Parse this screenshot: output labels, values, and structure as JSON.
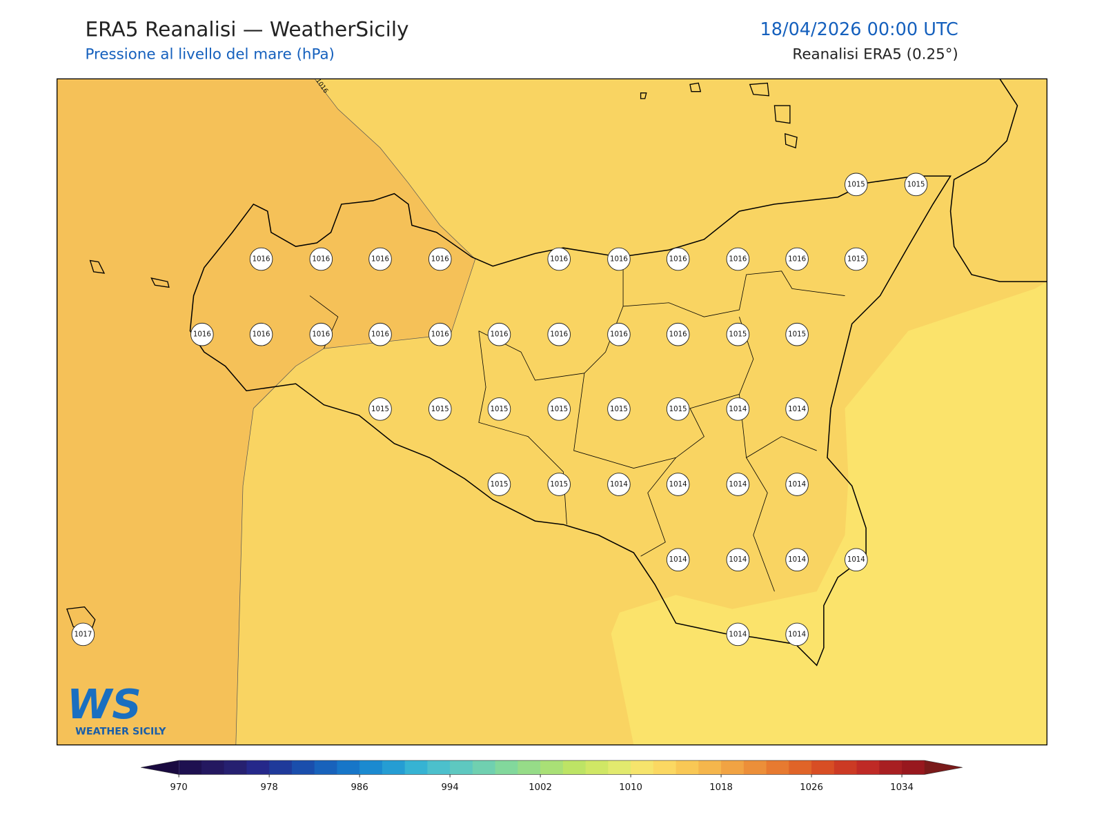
{
  "header": {
    "title": "ERA5 Reanalisi — WeatherSicily",
    "subtitle": "Pressione al livello del mare (hPa)",
    "datetime": "18/04/2026 00:00 UTC",
    "source": "Reanalisi ERA5 (0.25°)"
  },
  "map": {
    "contour_label": 1016,
    "stations": [
      1015,
      1015,
      1016,
      1016,
      1016,
      1016,
      1016,
      1016,
      1016,
      1016,
      1016,
      1015,
      1016,
      1016,
      1016,
      1016,
      1016,
      1016,
      1016,
      1016,
      1016,
      1015,
      1015,
      1015,
      1015,
      1015,
      1015,
      1015,
      1015,
      1014,
      1014,
      1015,
      1015,
      1014,
      1014,
      1014,
      1014,
      1014,
      1014,
      1014,
      1014,
      1017,
      1014,
      1014
    ]
  },
  "colorbar": {
    "lim": [
      970,
      1036
    ],
    "ticks": [
      970,
      978,
      986,
      994,
      1002,
      1010,
      1018,
      1026,
      1034
    ],
    "colors": [
      "#1e1050",
      "#241860",
      "#262070",
      "#25288a",
      "#1f3a9a",
      "#1a4eac",
      "#1862bb",
      "#1776c8",
      "#1b8ad0",
      "#259dd3",
      "#36b3d3",
      "#4cc0cc",
      "#5ec8c0",
      "#70d0b0",
      "#82d89c",
      "#96dc88",
      "#a9e076",
      "#bde465",
      "#d0e765",
      "#e2ea6e",
      "#f6e46c",
      "#fbd862",
      "#f9c855",
      "#f5b64c",
      "#f1a343",
      "#ec8f39",
      "#e77a30",
      "#e06428",
      "#d84e24",
      "#cc3a24",
      "#bf2a26",
      "#a81f22",
      "#98181e"
    ],
    "under_color": "#1a0a40",
    "over_color": "#7a1a1a"
  },
  "logo": {
    "mark": "WS",
    "text": "WEATHER SICILY"
  }
}
